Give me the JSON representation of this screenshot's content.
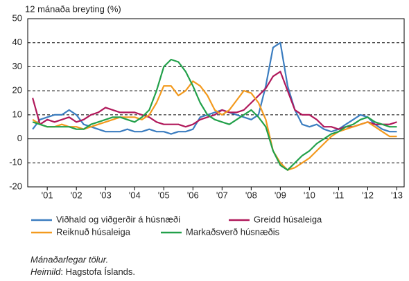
{
  "chart_data": {
    "type": "line",
    "title": "12 mánaða breyting (%)",
    "x": [
      2000.5,
      2000.75,
      2001,
      2001.25,
      2001.5,
      2001.75,
      2002,
      2002.25,
      2002.5,
      2002.75,
      2003,
      2003.25,
      2003.5,
      2003.75,
      2004,
      2004.25,
      2004.5,
      2004.75,
      2005,
      2005.25,
      2005.5,
      2005.75,
      2006,
      2006.25,
      2006.5,
      2006.75,
      2007,
      2007.25,
      2007.5,
      2007.75,
      2008,
      2008.25,
      2008.5,
      2008.75,
      2009,
      2009.25,
      2009.5,
      2009.75,
      2010,
      2010.25,
      2010.5,
      2010.75,
      2011,
      2011.25,
      2011.5,
      2011.75,
      2012,
      2012.25,
      2012.5,
      2012.75,
      2013
    ],
    "series": [
      {
        "name": "Viðhald og viðgerðir á húsnæði",
        "color": "#3b7dc0",
        "values": [
          4,
          8,
          9,
          10,
          10,
          12,
          10,
          6,
          5,
          4,
          3,
          3,
          3,
          4,
          3,
          3,
          4,
          3,
          3,
          2,
          3,
          3,
          4,
          9,
          10,
          11,
          12,
          11,
          10,
          9,
          8,
          10,
          22,
          38,
          40,
          22,
          12,
          6,
          5,
          6,
          4,
          3,
          4,
          6,
          8,
          10,
          9,
          6,
          4,
          3,
          3
        ]
      },
      {
        "name": "Greidd húsaleiga",
        "color": "#b0185a",
        "values": [
          17,
          6,
          8,
          7,
          8,
          9,
          7,
          8,
          10,
          11,
          13,
          12,
          11,
          11,
          11,
          10,
          9,
          7,
          6,
          6,
          6,
          5,
          6,
          8,
          9,
          10,
          12,
          11,
          11,
          12,
          15,
          18,
          21,
          26,
          28,
          20,
          12,
          10,
          10,
          8,
          5,
          5,
          4,
          5,
          5,
          6,
          7,
          6,
          6,
          6,
          7
        ]
      },
      {
        "name": "Reiknuð húsaleiga",
        "color": "#f39a1e",
        "values": [
          8,
          6,
          5,
          5,
          6,
          5,
          5,
          4,
          5,
          6,
          7,
          8,
          9,
          9,
          9,
          8,
          10,
          15,
          22,
          22,
          18,
          20,
          24,
          22,
          18,
          12,
          10,
          12,
          16,
          20,
          19,
          15,
          8,
          -5,
          -10,
          -13,
          -12,
          -10,
          -8,
          -5,
          -2,
          1,
          3,
          4,
          5,
          6,
          7,
          5,
          3,
          1,
          1
        ]
      },
      {
        "name": "Markaðsverð húsnæðis",
        "color": "#22a04a",
        "values": [
          7,
          6,
          5,
          5,
          5,
          5,
          4,
          4,
          6,
          7,
          8,
          9,
          9,
          8,
          7,
          9,
          12,
          20,
          30,
          33,
          32,
          28,
          22,
          15,
          10,
          8,
          7,
          6,
          8,
          10,
          12,
          9,
          5,
          -5,
          -11,
          -13,
          -10,
          -7,
          -5,
          -2,
          0,
          2,
          3,
          5,
          6,
          8,
          9,
          7,
          6,
          5,
          5
        ]
      }
    ],
    "xlim": [
      2000.33,
      2013.25
    ],
    "xticks": [
      {
        "value": 2001,
        "label": "'01"
      },
      {
        "value": 2002,
        "label": "'02"
      },
      {
        "value": 2003,
        "label": "'03"
      },
      {
        "value": 2004,
        "label": "'04"
      },
      {
        "value": 2005,
        "label": "'05"
      },
      {
        "value": 2006,
        "label": "'06"
      },
      {
        "value": 2007,
        "label": "'07"
      },
      {
        "value": 2008,
        "label": "'08"
      },
      {
        "value": 2009,
        "label": "'09"
      },
      {
        "value": 2010,
        "label": "'10"
      },
      {
        "value": 2011,
        "label": "'11"
      },
      {
        "value": 2012,
        "label": "'12"
      },
      {
        "value": 2013,
        "label": "'13"
      }
    ],
    "ylim": [
      -20,
      50
    ],
    "yticks": [
      -20,
      -10,
      0,
      10,
      20,
      30,
      40,
      50
    ],
    "grid": true,
    "note": "Mánaðarlegar tölur.",
    "source_label": "Heimild",
    "source_text": ": Hagstofa Íslands."
  }
}
